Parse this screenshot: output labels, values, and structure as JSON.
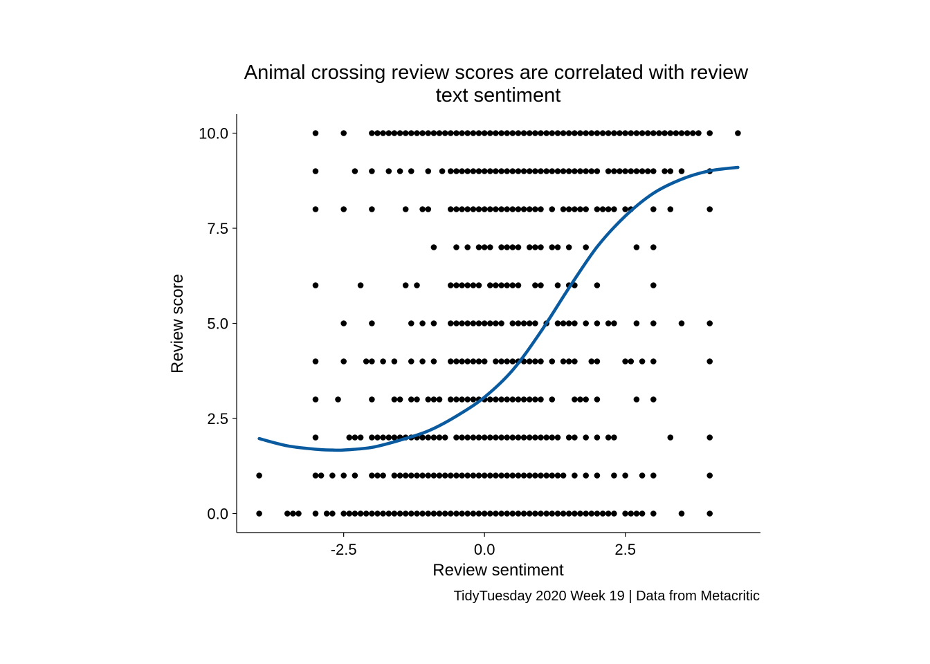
{
  "chart_data": {
    "type": "scatter",
    "title_lines": [
      "Animal crossing review scores are correlated with review",
      "text sentiment"
    ],
    "xlabel": "Review sentiment",
    "ylabel": "Review score",
    "caption": "TidyTuesday 2020 Week 19 | Data from Metacritic",
    "xlim": [
      -4.4,
      4.9
    ],
    "ylim": [
      -0.5,
      10.5
    ],
    "x_ticks": [
      {
        "value": -2.5,
        "label": "-2.5"
      },
      {
        "value": 0.0,
        "label": "0.0"
      },
      {
        "value": 2.5,
        "label": "2.5"
      }
    ],
    "y_ticks": [
      {
        "value": 0,
        "label": "0.0"
      },
      {
        "value": 2.5,
        "label": "2.5"
      },
      {
        "value": 5,
        "label": "5.0"
      },
      {
        "value": 7.5,
        "label": "7.5"
      },
      {
        "value": 10,
        "label": "10.0"
      }
    ],
    "grid": false,
    "point_color": "#000000",
    "smooth_color": "#0a5a9f",
    "points_by_score": [
      {
        "score": 10,
        "x": [
          -3.0,
          -2.5,
          -2.0,
          -1.9,
          -1.8,
          -1.7,
          -1.6,
          -1.5,
          -1.4,
          -1.3,
          -1.2,
          -1.1,
          -1.0,
          -0.9,
          -0.8,
          -0.7,
          -0.6,
          -0.5,
          -0.4,
          -0.3,
          -0.2,
          -0.1,
          0.0,
          0.1,
          0.2,
          0.3,
          0.4,
          0.5,
          0.6,
          0.7,
          0.8,
          0.9,
          1.0,
          1.1,
          1.2,
          1.3,
          1.4,
          1.5,
          1.6,
          1.7,
          1.8,
          1.9,
          2.0,
          2.1,
          2.2,
          2.3,
          2.4,
          2.5,
          2.6,
          2.7,
          2.8,
          2.9,
          3.0,
          3.1,
          3.2,
          3.3,
          3.4,
          3.5,
          3.6,
          3.7,
          3.8,
          4.0,
          4.5
        ]
      },
      {
        "score": 9,
        "x": [
          -3.0,
          -2.3,
          -2.0,
          -1.7,
          -1.5,
          -1.3,
          -1.0,
          -0.75,
          -0.6,
          -0.5,
          -0.4,
          -0.3,
          -0.2,
          -0.1,
          0.0,
          0.1,
          0.2,
          0.3,
          0.4,
          0.5,
          0.6,
          0.7,
          0.8,
          0.9,
          1.0,
          1.1,
          1.2,
          1.3,
          1.4,
          1.5,
          1.6,
          1.7,
          1.8,
          1.9,
          2.0,
          2.2,
          2.3,
          2.4,
          2.5,
          2.6,
          2.7,
          2.8,
          2.9,
          3.0,
          3.2,
          3.3,
          3.5,
          4.0
        ]
      },
      {
        "score": 8,
        "x": [
          -3.0,
          -2.5,
          -2.0,
          -1.4,
          -1.1,
          -1.0,
          -0.6,
          -0.5,
          -0.4,
          -0.3,
          -0.2,
          -0.1,
          0.0,
          0.1,
          0.2,
          0.3,
          0.4,
          0.5,
          0.6,
          0.7,
          0.8,
          0.9,
          1.0,
          1.2,
          1.4,
          1.5,
          1.6,
          1.7,
          1.8,
          2.0,
          2.1,
          2.2,
          2.3,
          2.5,
          2.6,
          3.0,
          3.3,
          4.0
        ]
      },
      {
        "score": 7,
        "x": [
          -0.9,
          -0.5,
          -0.3,
          -0.1,
          0.0,
          0.1,
          0.3,
          0.4,
          0.5,
          0.6,
          0.8,
          0.9,
          1.0,
          1.2,
          1.3,
          1.5,
          1.8,
          2.7,
          3.0
        ]
      },
      {
        "score": 6,
        "x": [
          -3.0,
          -2.2,
          -1.4,
          -1.2,
          -0.6,
          -0.5,
          -0.4,
          -0.3,
          -0.2,
          -0.1,
          0.1,
          0.2,
          0.3,
          0.4,
          0.5,
          0.6,
          0.9,
          1.0,
          1.3,
          1.5,
          1.6,
          2.0,
          3.0
        ]
      },
      {
        "score": 5,
        "x": [
          -2.5,
          -2.0,
          -1.3,
          -1.1,
          -0.9,
          -0.6,
          -0.5,
          -0.4,
          -0.3,
          -0.2,
          -0.1,
          0.0,
          0.1,
          0.2,
          0.3,
          0.5,
          0.6,
          0.7,
          0.8,
          0.9,
          1.1,
          1.3,
          1.4,
          1.5,
          1.6,
          1.8,
          2.0,
          2.2,
          2.3,
          2.7,
          3.0,
          3.5,
          4.0
        ]
      },
      {
        "score": 4,
        "x": [
          -3.0,
          -2.5,
          -2.1,
          -2.0,
          -1.8,
          -1.6,
          -1.3,
          -1.1,
          -0.9,
          -0.6,
          -0.5,
          -0.4,
          -0.3,
          -0.2,
          -0.1,
          0.0,
          0.2,
          0.3,
          0.4,
          0.5,
          0.6,
          0.7,
          0.8,
          0.9,
          1.0,
          1.2,
          1.4,
          1.5,
          1.6,
          1.9,
          2.0,
          2.5,
          2.6,
          2.8,
          3.0,
          4.0
        ]
      },
      {
        "score": 3,
        "x": [
          -3.0,
          -2.6,
          -2.0,
          -1.6,
          -1.5,
          -1.3,
          -1.2,
          -1.0,
          -0.9,
          -0.8,
          -0.6,
          -0.5,
          -0.4,
          -0.3,
          -0.2,
          -0.1,
          0.0,
          0.1,
          0.2,
          0.3,
          0.4,
          0.5,
          0.6,
          0.7,
          0.8,
          0.9,
          1.0,
          1.2,
          1.6,
          1.7,
          1.8,
          2.0,
          2.7,
          3.0
        ]
      },
      {
        "score": 2,
        "x": [
          -3.0,
          -2.4,
          -2.3,
          -2.2,
          -2.0,
          -1.9,
          -1.8,
          -1.7,
          -1.6,
          -1.5,
          -1.4,
          -1.3,
          -1.2,
          -1.1,
          -1.0,
          -0.9,
          -0.8,
          -0.7,
          -0.5,
          -0.4,
          -0.3,
          -0.2,
          -0.1,
          0.0,
          0.1,
          0.2,
          0.3,
          0.4,
          0.5,
          0.6,
          0.7,
          0.8,
          0.9,
          1.0,
          1.1,
          1.2,
          1.3,
          1.5,
          1.6,
          1.8,
          2.0,
          2.2,
          2.3,
          3.3,
          4.0
        ]
      },
      {
        "score": 1,
        "x": [
          -4.0,
          -3.0,
          -2.9,
          -2.7,
          -2.5,
          -2.3,
          -2.0,
          -1.9,
          -1.8,
          -1.6,
          -1.5,
          -1.4,
          -1.3,
          -1.2,
          -1.1,
          -1.0,
          -0.9,
          -0.8,
          -0.7,
          -0.6,
          -0.5,
          -0.4,
          -0.3,
          -0.2,
          -0.1,
          0.0,
          0.1,
          0.2,
          0.3,
          0.4,
          0.5,
          0.6,
          0.7,
          0.8,
          0.9,
          1.0,
          1.1,
          1.2,
          1.3,
          1.4,
          1.6,
          1.8,
          2.0,
          2.3,
          2.5,
          2.8,
          3.0,
          4.0
        ]
      },
      {
        "score": 0,
        "x": [
          -4.0,
          -3.5,
          -3.4,
          -3.3,
          -3.0,
          -2.8,
          -2.7,
          -2.5,
          -2.4,
          -2.3,
          -2.2,
          -2.1,
          -2.0,
          -1.9,
          -1.8,
          -1.7,
          -1.6,
          -1.5,
          -1.4,
          -1.3,
          -1.2,
          -1.1,
          -1.0,
          -0.9,
          -0.8,
          -0.7,
          -0.6,
          -0.5,
          -0.4,
          -0.3,
          -0.2,
          -0.1,
          0.0,
          0.1,
          0.2,
          0.3,
          0.4,
          0.5,
          0.6,
          0.7,
          0.8,
          0.9,
          1.0,
          1.1,
          1.2,
          1.3,
          1.4,
          1.5,
          1.6,
          1.7,
          1.8,
          1.9,
          2.0,
          2.1,
          2.2,
          2.3,
          2.5,
          2.6,
          2.7,
          2.8,
          3.0,
          3.5,
          4.0
        ]
      }
    ],
    "smooth_line": {
      "x": [
        -4.0,
        -3.5,
        -3.0,
        -2.7,
        -2.5,
        -2.0,
        -1.5,
        -1.0,
        -0.5,
        0.0,
        0.5,
        1.0,
        1.5,
        2.0,
        2.5,
        3.0,
        3.5,
        4.0,
        4.5
      ],
      "y": [
        1.97,
        1.78,
        1.69,
        1.67,
        1.67,
        1.74,
        1.93,
        2.17,
        2.56,
        3.06,
        3.77,
        4.78,
        5.93,
        7.01,
        7.82,
        8.42,
        8.79,
        9.01,
        9.1
      ]
    }
  }
}
